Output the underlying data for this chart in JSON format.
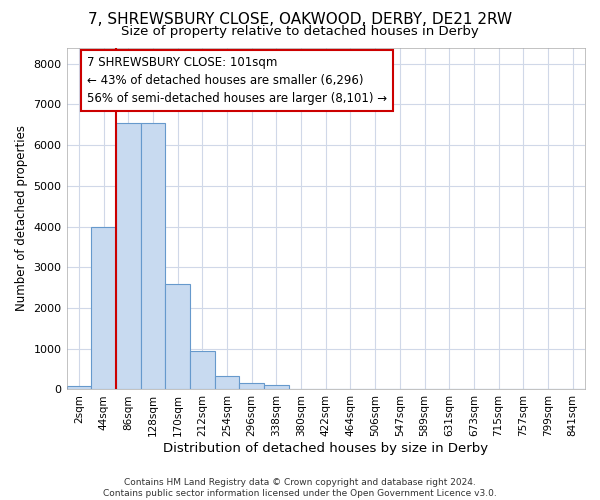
{
  "title": "7, SHREWSBURY CLOSE, OAKWOOD, DERBY, DE21 2RW",
  "subtitle": "Size of property relative to detached houses in Derby",
  "xlabel": "Distribution of detached houses by size in Derby",
  "ylabel": "Number of detached properties",
  "bin_labels": [
    "2sqm",
    "44sqm",
    "86sqm",
    "128sqm",
    "170sqm",
    "212sqm",
    "254sqm",
    "296sqm",
    "338sqm",
    "380sqm",
    "422sqm",
    "464sqm",
    "506sqm",
    "547sqm",
    "589sqm",
    "631sqm",
    "673sqm",
    "715sqm",
    "757sqm",
    "799sqm",
    "841sqm"
  ],
  "bar_heights": [
    80,
    4000,
    6550,
    6550,
    2600,
    950,
    325,
    150,
    100,
    0,
    0,
    0,
    0,
    0,
    0,
    0,
    0,
    0,
    0,
    0,
    0
  ],
  "bar_color": "#c8daf0",
  "bar_edge_color": "#6699cc",
  "vline_index": 2,
  "vline_color": "#cc0000",
  "ylim": [
    0,
    8400
  ],
  "yticks": [
    0,
    1000,
    2000,
    3000,
    4000,
    5000,
    6000,
    7000,
    8000
  ],
  "annotation_text_line1": "7 SHREWSBURY CLOSE: 101sqm",
  "annotation_text_line2": "← 43% of detached houses are smaller (6,296)",
  "annotation_text_line3": "56% of semi-detached houses are larger (8,101) →",
  "annotation_box_color": "#cc0000",
  "footer_text": "Contains HM Land Registry data © Crown copyright and database right 2024.\nContains public sector information licensed under the Open Government Licence v3.0.",
  "bg_color": "#ffffff",
  "grid_color": "#d0d8e8",
  "title_fontsize": 11,
  "subtitle_fontsize": 9.5,
  "tick_fontsize": 7.5,
  "ylabel_fontsize": 8.5,
  "xlabel_fontsize": 9.5,
  "annotation_fontsize": 8.5,
  "footer_fontsize": 6.5
}
